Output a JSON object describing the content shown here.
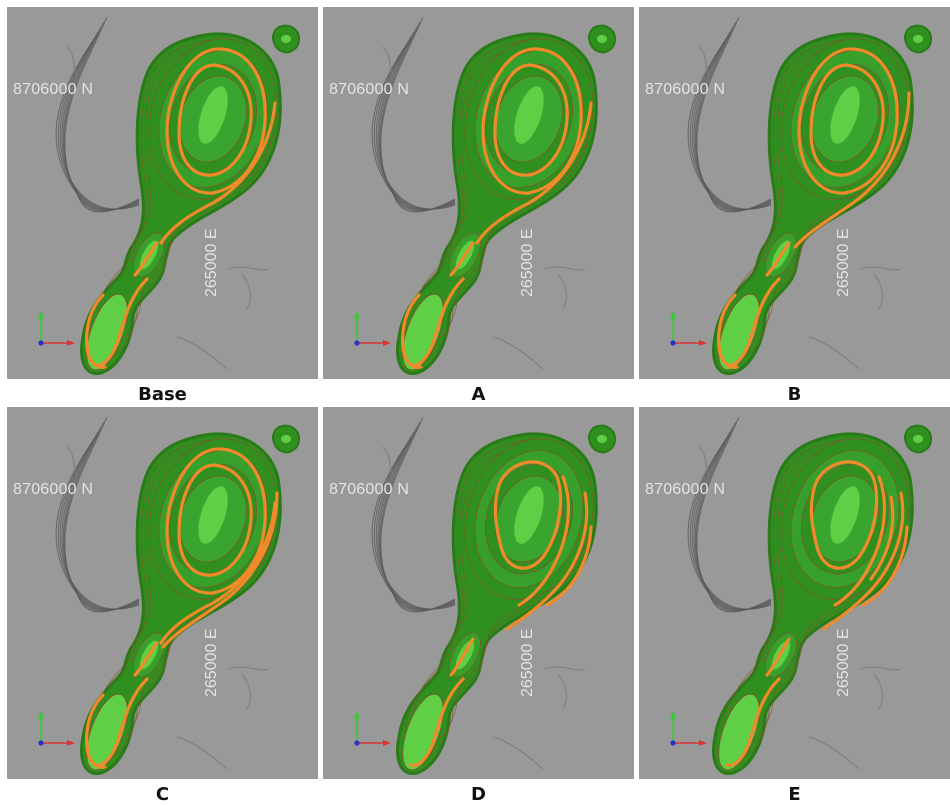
{
  "figure": {
    "panels": [
      {
        "id": "base",
        "caption": "Base",
        "north_label": "8706000 N",
        "east_label": "265000 E",
        "variant": "base"
      },
      {
        "id": "a",
        "caption": "A",
        "north_label": "8706000 N",
        "east_label": "265000 E",
        "variant": "base"
      },
      {
        "id": "b",
        "caption": "B",
        "north_label": "8706000 N",
        "east_label": "265000 E",
        "variant": "b"
      },
      {
        "id": "c",
        "caption": "C",
        "north_label": "8706000 N",
        "east_label": "265000 E",
        "variant": "c"
      },
      {
        "id": "d",
        "caption": "D",
        "north_label": "8706000 N",
        "east_label": "265000 E",
        "variant": "d"
      },
      {
        "id": "e",
        "caption": "E",
        "north_label": "8706000 N",
        "east_label": "265000 E",
        "variant": "e"
      }
    ]
  },
  "colors": {
    "background": "#999999",
    "pit_dark_green": "#2f8f1f",
    "pit_green": "#34a82a",
    "pit_light_green": "#5fcf45",
    "bench_line": "#7a5a2a",
    "phase_orange": "#f08a2a",
    "ridge_dark": "#5a5a5a",
    "axis_y": "#33cc33",
    "axis_x": "#dd3333",
    "axis_origin": "#2233cc"
  }
}
